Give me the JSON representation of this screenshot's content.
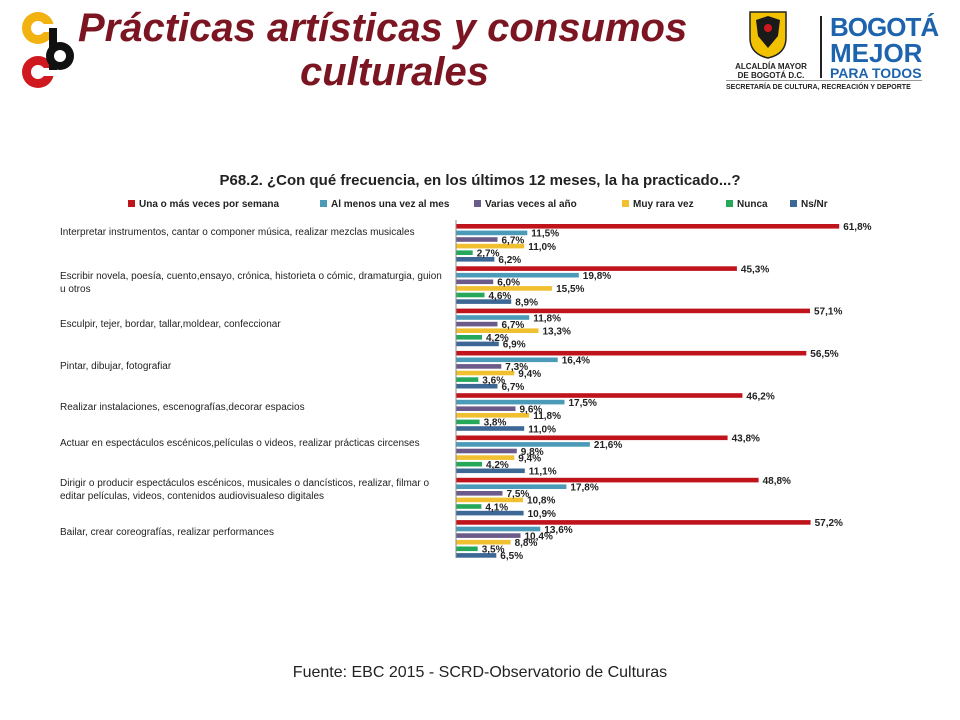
{
  "header": {
    "title_line1": "Prácticas artísticas y consumos",
    "title_line2": "culturales",
    "alcaldia_line1": "ALCALDÍA MAYOR",
    "alcaldia_line2": "DE BOGOTÁ D.C.",
    "bogota_line1": "BOGOTÁ",
    "bogota_line2": "MEJOR",
    "bogota_line3": "PARA TODOS",
    "secretaria": "SECRETARÍA DE CULTURA, RECREACIÓN Y DEPORTE"
  },
  "chart_data": {
    "type": "bar",
    "orientation": "horizontal",
    "title": "P68.2. ¿Con qué frecuencia, en los últimos 12 meses, la ha practicado...?",
    "legend_position": "top",
    "grid": false,
    "xlim": [
      0,
      70
    ],
    "categories": [
      "Interpretar instrumentos, cantar o componer música, realizar mezclas musicales",
      "Escribir novela, poesía, cuento,ensayo, crónica, historieta o cómic, dramaturgia, guion u otros",
      "Esculpir, tejer, bordar, tallar,moldear, confeccionar",
      "Pintar, dibujar, fotografiar",
      "Realizar instalaciones, escenografías,decorar espacios",
      "Actuar en espectáculos escénicos,películas o videos, realizar prácticas circenses",
      "Dirigir o producir espectáculos escénicos, musicales o dancísticos, realizar, filmar o editar películas, videos, contenidos audiovisualeso digitales",
      "Bailar, crear coreografías, realizar performances"
    ],
    "series": [
      {
        "name": "Una o más veces por semana",
        "color": "#c0141c",
        "values": [
          61.8,
          45.3,
          57.1,
          56.5,
          46.2,
          43.8,
          48.8,
          57.2
        ],
        "labels": [
          "61,8%",
          "45,3%",
          "57,1%",
          "56,5%",
          "46,2%",
          "43,8%",
          "48,8%",
          "57,2%"
        ]
      },
      {
        "name": "Al menos una vez al mes",
        "color": "#4a9ab8",
        "values": [
          11.5,
          19.8,
          11.8,
          16.4,
          17.5,
          21.6,
          17.8,
          13.6
        ],
        "labels": [
          "11,5%",
          "19,8%",
          "11,8%",
          "16,4%",
          "17,5%",
          "21,6%",
          "17,8%",
          "13,6%"
        ]
      },
      {
        "name": "Varias veces al año",
        "color": "#6b5b8a",
        "values": [
          6.7,
          6.0,
          6.7,
          7.3,
          9.6,
          9.8,
          7.5,
          10.4
        ],
        "labels": [
          "6,7%",
          "6,0%",
          "6,7%",
          "7,3%",
          "9,6%",
          "9,8%",
          "7,5%",
          "10,4%"
        ]
      },
      {
        "name": "Muy rara vez",
        "color": "#f0c030",
        "values": [
          11.0,
          15.5,
          13.3,
          9.4,
          11.8,
          9.4,
          10.8,
          8.8
        ],
        "labels": [
          "11,0%",
          "15,5%",
          "13,3%",
          "9,4%",
          "11,8%",
          "9,4%",
          "10,8%",
          "8,8%"
        ]
      },
      {
        "name": "Nunca",
        "color": "#26a85a",
        "values": [
          2.7,
          4.6,
          4.2,
          3.6,
          3.8,
          4.2,
          4.1,
          3.5
        ],
        "labels": [
          "2,7%",
          "4,6%",
          "4,2%",
          "3,6%",
          "3,8%",
          "4,2%",
          "4,1%",
          "3,5%"
        ]
      },
      {
        "name": "Ns/Nr",
        "color": "#3d6896",
        "values": [
          6.2,
          8.9,
          6.9,
          6.7,
          11.0,
          11.1,
          10.9,
          6.5
        ],
        "labels": [
          "6,2%",
          "8,9%",
          "6,9%",
          "6,7%",
          "11,0%",
          "11,1%",
          "10,9%",
          "6,5%"
        ]
      }
    ]
  },
  "footer": {
    "source": "Fuente: EBC  2015 - SCRD-Observatorio  de Culturas"
  }
}
